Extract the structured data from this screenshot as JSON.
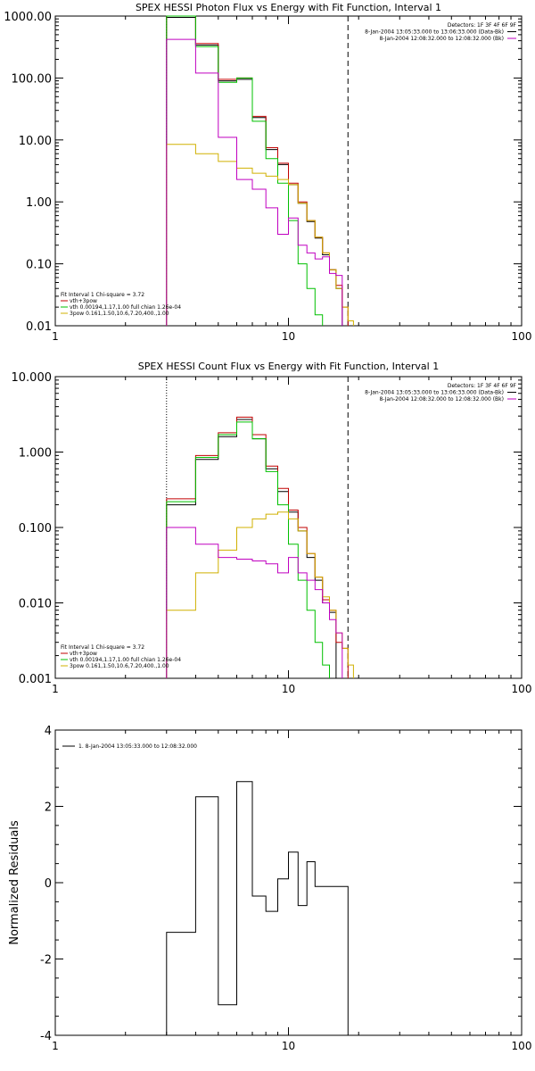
{
  "chart_data": [
    {
      "type": "line",
      "title": "SPEX HESSI Photon Flux vs Energy with Fit Function, Interval 1",
      "xlabel": "",
      "ylabel": "",
      "xscale": "log",
      "yscale": "log",
      "xlim": [
        1,
        100
      ],
      "ylim": [
        0.01,
        1000
      ],
      "xticks": [
        {
          "v": 1,
          "label": "1"
        },
        {
          "v": 10,
          "label": "10"
        },
        {
          "v": 100,
          "label": "100"
        }
      ],
      "yticks": [
        {
          "v": 1000,
          "label": "1000.00"
        },
        {
          "v": 100,
          "label": "100.00"
        },
        {
          "v": 10,
          "label": "10.00"
        },
        {
          "v": 1,
          "label": "1.00"
        },
        {
          "v": 0.1,
          "label": "0.10"
        },
        {
          "v": 0.01,
          "label": "0.01"
        }
      ],
      "grid": false,
      "fit_range": [
        3,
        18
      ],
      "legend_top": {
        "position": "top-right",
        "lines": [
          "Detectors: 1F 3F 4F 6F 9F",
          "8-Jan-2004 13:05:33.000 to 13:06:33.000 (Data-Bk)",
          "8-Jan-2004 12:08:32.000 to 12:08:32.000 (Bk)"
        ],
        "colors": [
          "",
          "#000000",
          "#c000c0"
        ]
      },
      "legend_bottom": {
        "position": "bottom-left",
        "lines": [
          "Fit Interval 1    Chi-square = 3.72",
          "vth+3pow",
          "vth 0.00194,1.17,1.00  full chian 1.26e-04",
          "3pow 0.161,1.50,10.6,7.20,400.,1.00"
        ],
        "colors": [
          "",
          "#c00000",
          "#00c000",
          "#d0b000"
        ]
      },
      "edges": [
        3,
        4,
        5,
        6,
        7,
        8,
        9,
        10,
        11,
        12,
        13,
        14,
        15,
        16,
        17,
        18,
        19,
        20,
        21,
        22
      ],
      "series": [
        {
          "color": "#000000",
          "values": [
            950,
            340,
            90,
            95,
            23,
            7,
            4,
            1.9,
            0.95,
            0.48,
            0.26,
            0.14,
            0.08,
            0.04,
            null,
            null,
            null,
            null,
            null
          ]
        },
        {
          "color": "#c00000",
          "values": [
            1000,
            360,
            95,
            100,
            24,
            7.5,
            4.2,
            2.0,
            1.0,
            0.5,
            0.27,
            0.15,
            0.08,
            0.045,
            0.02,
            null,
            null,
            null,
            null
          ]
        },
        {
          "color": "#00c000",
          "values": [
            1000,
            320,
            85,
            100,
            20,
            5,
            2,
            0.5,
            0.1,
            0.04,
            0.015,
            null,
            null,
            null,
            null,
            null,
            null,
            null,
            null
          ]
        },
        {
          "color": "#d0b000",
          "values": [
            8.5,
            6,
            4.5,
            3.5,
            2.9,
            2.6,
            2.3,
            1.9,
            0.95,
            0.5,
            0.27,
            0.15,
            0.08,
            0.04,
            0.02,
            0.012,
            null,
            null,
            null
          ]
        },
        {
          "color": "#c000c0",
          "values": [
            420,
            120,
            11,
            2.3,
            1.6,
            0.8,
            0.3,
            0.55,
            0.2,
            0.15,
            0.12,
            0.13,
            0.07,
            0.065,
            null,
            null,
            null,
            null,
            null
          ]
        }
      ]
    },
    {
      "type": "line",
      "title": "SPEX HESSI Count Flux vs Energy with Fit Function, Interval 1",
      "xlabel": "",
      "ylabel": "",
      "xscale": "log",
      "yscale": "log",
      "xlim": [
        1,
        100
      ],
      "ylim": [
        0.001,
        10
      ],
      "xticks": [
        {
          "v": 1,
          "label": "1"
        },
        {
          "v": 10,
          "label": "10"
        },
        {
          "v": 100,
          "label": "100"
        }
      ],
      "yticks": [
        {
          "v": 10,
          "label": "10.000"
        },
        {
          "v": 1,
          "label": "1.000"
        },
        {
          "v": 0.1,
          "label": "0.100"
        },
        {
          "v": 0.01,
          "label": "0.010"
        },
        {
          "v": 0.001,
          "label": "0.001"
        }
      ],
      "grid": false,
      "fit_range": [
        3,
        18
      ],
      "legend_top": {
        "position": "top-right",
        "lines": [
          "Detectors: 1F 3F 4F 6F 9F",
          "8-Jan-2004 13:05:33.000 to 13:06:33.000 (Data-Bk)",
          "8-Jan-2004 12:08:32.000 to 12:08:32.000 (Bk)"
        ],
        "colors": [
          "",
          "#000000",
          "#c000c0"
        ]
      },
      "legend_bottom": {
        "position": "bottom-left",
        "lines": [
          "Fit Interval 1    Chi-square = 3.72",
          "vth+3pow",
          "vth 0.00194,1.17,1.00  full chian 1.26e-04",
          "3pow 0.161,1.50,10.6,7.20,400.,1.00"
        ],
        "colors": [
          "",
          "#c00000",
          "#00c000",
          "#d0b000"
        ]
      },
      "edges": [
        3,
        4,
        5,
        6,
        7,
        8,
        9,
        10,
        11,
        12,
        13,
        14,
        15,
        16,
        17,
        18,
        19,
        20,
        21,
        22
      ],
      "series": [
        {
          "color": "#000000",
          "values": [
            0.2,
            0.8,
            1.6,
            2.7,
            1.5,
            0.6,
            0.3,
            0.16,
            0.09,
            0.04,
            0.02,
            0.01,
            0.0075,
            null,
            null,
            null,
            null,
            null,
            null
          ]
        },
        {
          "color": "#c00000",
          "values": [
            0.24,
            0.9,
            1.8,
            2.9,
            1.7,
            0.65,
            0.33,
            0.17,
            0.1,
            0.045,
            0.022,
            0.011,
            0.008,
            0.003,
            0.0025,
            null,
            null,
            null,
            null
          ]
        },
        {
          "color": "#00c000",
          "values": [
            0.22,
            0.85,
            1.7,
            2.5,
            1.5,
            0.55,
            0.2,
            0.06,
            0.02,
            0.008,
            0.003,
            0.0015,
            null,
            null,
            null,
            null,
            null,
            null,
            null
          ]
        },
        {
          "color": "#d0b000",
          "values": [
            0.008,
            0.025,
            0.05,
            0.1,
            0.13,
            0.15,
            0.16,
            0.13,
            0.09,
            0.045,
            0.022,
            0.012,
            0.008,
            0.004,
            0.0025,
            0.0015,
            null,
            null,
            null
          ]
        },
        {
          "color": "#c000c0",
          "values": [
            0.1,
            0.06,
            0.04,
            0.038,
            0.036,
            0.033,
            0.025,
            0.04,
            0.025,
            0.02,
            0.015,
            0.01,
            0.006,
            0.004,
            null,
            null,
            null,
            null,
            null
          ]
        }
      ]
    },
    {
      "type": "line",
      "title": "",
      "xlabel": "",
      "ylabel": "Normalized Residuals",
      "xscale": "log",
      "yscale": "linear",
      "xlim": [
        1,
        100
      ],
      "ylim": [
        -4,
        4
      ],
      "xticks": [
        {
          "v": 1,
          "label": "1"
        },
        {
          "v": 10,
          "label": "10"
        },
        {
          "v": 100,
          "label": "100"
        }
      ],
      "yticks": [
        {
          "v": 4,
          "label": "4"
        },
        {
          "v": 2,
          "label": "2"
        },
        {
          "v": 0,
          "label": "0"
        },
        {
          "v": -2,
          "label": "-2"
        },
        {
          "v": -4,
          "label": "-4"
        }
      ],
      "grid": false,
      "legend_top": {
        "position": "top-left",
        "lines": [
          "1.  8-Jan-2004 13:05:33.000 to 12:08:32.000"
        ],
        "colors": [
          "#000000"
        ]
      },
      "edges": [
        3,
        4,
        5,
        6,
        7,
        8,
        9,
        10,
        11,
        12,
        13,
        14,
        15,
        16,
        17,
        18
      ],
      "series": [
        {
          "color": "#000000",
          "values": [
            -1.3,
            2.25,
            -3.2,
            2.65,
            -0.35,
            -0.75,
            0.1,
            0.8,
            -0.6,
            0.55,
            -0.1,
            -0.1,
            -0.1,
            -0.1,
            -0.1
          ],
          "drop_to": -4
        }
      ]
    }
  ]
}
